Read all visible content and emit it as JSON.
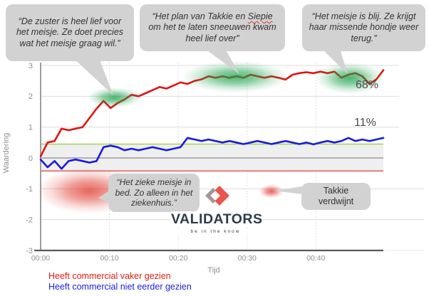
{
  "callouts": {
    "nurse": {
      "text": "“De zuster is heel lief voor het meisje. Ze doet precies wat het meisje graag wil.”"
    },
    "snow": {
      "pre": "“Het plan van Takkie en ",
      "misspelled_word": "Siepie",
      "post": " om het te laten sneeuwen kwam heel lief over”"
    },
    "happy": {
      "text": "“Het meisje is blij. Ze krijgt haar missende hondje weer terug.”"
    },
    "hospital": {
      "text": "“Het zieke meisje in bed. Zo alleen in het ziekenhuis.”"
    },
    "takkie": {
      "text": "Takkie verdwijnt"
    }
  },
  "logo": {
    "name": "VALIDATORS",
    "tagline": "be in the know",
    "navy": "#2d3b4a",
    "red": "#e9544e",
    "gray": "#9b9b9b"
  },
  "chart_data": {
    "type": "line",
    "title": "",
    "xlabel": "Tijd",
    "ylabel": "Waardering",
    "ylim": [
      -3,
      3
    ],
    "xlim_minutes": [
      0,
      49.8
    ],
    "grid": true,
    "legend_position": "bottom-left",
    "y_ticks": [
      {
        "label": "3",
        "v": 3
      },
      {
        "label": "2",
        "v": 2
      },
      {
        "label": "1",
        "v": 1
      },
      {
        "label": "0",
        "v": 0
      },
      {
        "label": "-1",
        "v": -1
      },
      {
        "label": "-2",
        "v": -2
      },
      {
        "label": "-3",
        "v": -3
      }
    ],
    "x_ticks": [
      {
        "label": "00:00",
        "t": 0
      },
      {
        "label": "00:10",
        "t": 10
      },
      {
        "label": "00:20",
        "t": 20
      },
      {
        "label": "00:30",
        "t": 30
      },
      {
        "label": "00:40",
        "t": 40
      }
    ],
    "band": {
      "v_from": -0.42,
      "v_to": 0.45,
      "fill": "#efefef",
      "top_line": "#a6d154",
      "bottom_line": "#e35b52",
      "zero_line": "#9b9b9b"
    },
    "series": [
      {
        "name": "Heeft commercial vaker gezien",
        "color": "#e01414",
        "values": [
          0.05,
          0.5,
          0.55,
          0.95,
          0.9,
          0.95,
          1.0,
          1.3,
          1.6,
          1.85,
          1.62,
          1.78,
          1.9,
          2.05,
          2.0,
          2.1,
          2.2,
          2.3,
          2.25,
          2.35,
          2.45,
          2.4,
          2.5,
          2.55,
          2.65,
          2.6,
          2.65,
          2.6,
          2.65,
          2.6,
          2.7,
          2.65,
          2.6,
          2.65,
          2.6,
          2.54,
          2.7,
          2.75,
          2.78,
          2.75,
          2.8,
          2.75,
          2.8,
          2.6,
          2.7,
          2.75,
          2.65,
          2.4,
          2.55,
          2.85
        ]
      },
      {
        "name": "Heeft commercial niet eerder gezien",
        "color": "#1a1ae0",
        "values": [
          -0.05,
          -0.3,
          -0.1,
          -0.35,
          -0.1,
          -0.05,
          -0.1,
          -0.15,
          -0.1,
          0.35,
          0.4,
          0.35,
          0.25,
          0.3,
          0.25,
          0.3,
          0.35,
          0.3,
          0.25,
          0.3,
          0.35,
          0.65,
          0.6,
          0.55,
          0.6,
          0.55,
          0.5,
          0.55,
          0.5,
          0.45,
          0.5,
          0.55,
          0.5,
          0.45,
          0.5,
          0.55,
          0.5,
          0.45,
          0.5,
          0.44,
          0.5,
          0.55,
          0.5,
          0.55,
          0.65,
          0.55,
          0.6,
          0.55,
          0.6,
          0.65
        ]
      }
    ],
    "end_labels": [
      {
        "text": "68%",
        "series": "Heeft commercial vaker gezien"
      },
      {
        "text": "11%",
        "series": "Heeft commercial niet eerder gezien"
      }
    ],
    "highlights": [
      {
        "shape": "glow",
        "color": "green",
        "t": 10.7,
        "v": 1.96,
        "rt": 3.9,
        "rv": 0.33
      },
      {
        "shape": "glow",
        "color": "green",
        "t": 28.3,
        "v": 2.63,
        "rt": 7.8,
        "rv": 0.51
      },
      {
        "shape": "glow",
        "color": "green",
        "t": 44.9,
        "v": 2.59,
        "rt": 5.0,
        "rv": 0.51
      },
      {
        "shape": "glow",
        "color": "red",
        "t": 7.0,
        "v": -1.06,
        "rt": 7.5,
        "rv": 0.74
      },
      {
        "shape": "glow",
        "color": "red",
        "t": 33.5,
        "v": -1.08,
        "rt": 1.8,
        "rv": 0.23
      }
    ]
  }
}
